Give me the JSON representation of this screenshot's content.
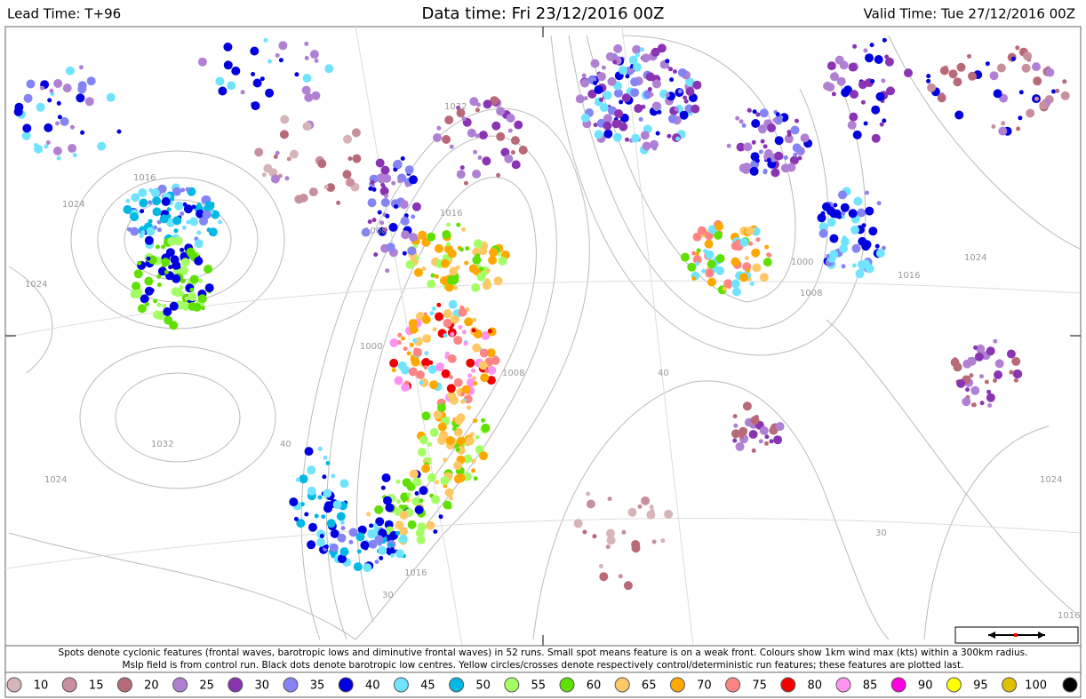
{
  "header": {
    "lead_time": "Lead Time: T+96",
    "data_time": "Data time:  Fri 23/12/2016 00Z",
    "valid_time": "Valid Time: Tue 27/12/2016 00Z"
  },
  "caption": [
    "Spots denote cyclonic features (frontal waves, barotropic lows and diminutive frontal waves) in 52 runs. Small spot means feature is on a weak front. Colours show 1km wind max (kts) within a 300km radius.",
    "Mslp field is from control run. Black dots denote barotropic low centres. Yellow circles/crosses denote respectively control/deterministic run features; these features are plotted last."
  ],
  "map": {
    "contour_labels": [
      "1016",
      "1024",
      "1008",
      "1032",
      "1000",
      "1016",
      "1024",
      "1008",
      "1000",
      "1016",
      "1024",
      "1032",
      "1016",
      "1024",
      "1008",
      "40",
      "30",
      "40",
      "30",
      "1024",
      "1016"
    ]
  },
  "legend": {
    "items": [
      {
        "value": 10,
        "color": "#d6b4b8"
      },
      {
        "value": 15,
        "color": "#c8909c"
      },
      {
        "value": 20,
        "color": "#b86a78"
      },
      {
        "value": 25,
        "color": "#b080d4"
      },
      {
        "value": 30,
        "color": "#8a34b4"
      },
      {
        "value": 35,
        "color": "#8484f4"
      },
      {
        "value": 40,
        "color": "#0000e0"
      },
      {
        "value": 45,
        "color": "#70e4ff"
      },
      {
        "value": 50,
        "color": "#00b8e4"
      },
      {
        "value": 55,
        "color": "#a4ff64"
      },
      {
        "value": 60,
        "color": "#60e000"
      },
      {
        "value": 65,
        "color": "#ffc864"
      },
      {
        "value": 70,
        "color": "#ffa800"
      },
      {
        "value": 75,
        "color": "#ff8484"
      },
      {
        "value": 80,
        "color": "#f00000"
      },
      {
        "value": 85,
        "color": "#ff94f0"
      },
      {
        "value": 90,
        "color": "#ff00e0"
      },
      {
        "value": 95,
        "color": "#ffff00"
      },
      {
        "value": 100,
        "color": "#e0c000"
      },
      {
        "color": "#000000"
      }
    ]
  }
}
